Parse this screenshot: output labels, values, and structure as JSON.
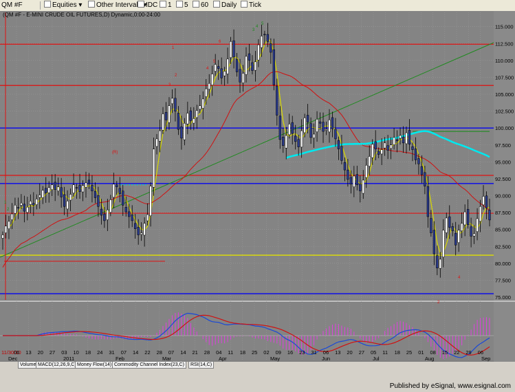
{
  "toolbar": {
    "symbol": "QM #F",
    "category": "Equities",
    "intervals_label": "Other Intervals",
    "items": [
      "IDC",
      "1",
      "5",
      "60",
      "Daily",
      "Tick"
    ]
  },
  "footer": {
    "published": "Published by eSignal, www.esignal.com"
  },
  "tabs": [
    "Volume",
    "MACD(12,26,9,C)",
    "Money Flow(14)",
    "Commodity Channel Index(23,C)",
    "RSI(14,C)"
  ],
  "colors": {
    "background": "#808080",
    "up_bar": "#ffffff",
    "down_bar": "#2a3b8f",
    "short_ma": "#d8d800",
    "long_ma": "#d01010",
    "cyan_ma": "#00e8ee",
    "trend": "#1e8a1e",
    "level_red": "#e01010",
    "level_blue": "#1818e0",
    "level_yellow": "#e0e000",
    "macd": "#1848d8",
    "signal": "#d01010",
    "histogram": "#e040e0"
  },
  "chart_data": {
    "type": "candlestick",
    "title": "(QM #F - E-MINI CRUDE OIL FUTURES,D) Dynamic,0:00-24:00",
    "ylim": [
      75,
      117
    ],
    "y_ticks": [
      "115.000",
      "112.500",
      "110.000",
      "107.500",
      "105.000",
      "102.500",
      "100.000",
      "97.500",
      "95.000",
      "92.500",
      "90.000",
      "87.500",
      "85.000",
      "82.500",
      "80.000",
      "77.500",
      "75.000"
    ],
    "x_day_labels": [
      "06",
      "13",
      "20",
      "27",
      "03",
      "10",
      "18",
      "24",
      "31",
      "07",
      "14",
      "22",
      "28",
      "07",
      "14",
      "21",
      "28",
      "04",
      "11",
      "18",
      "25",
      "02",
      "09",
      "16",
      "23",
      "31",
      "06",
      "13",
      "20",
      "27",
      "05",
      "11",
      "18",
      "25",
      "01",
      "08",
      "15",
      "22",
      "29",
      "06"
    ],
    "x_first_label": "11/30/10",
    "x_month_labels": [
      "Dec",
      "2011",
      "Feb",
      "Mar",
      "Apr",
      "May",
      "Jun",
      "Jul",
      "Aug",
      "Sep"
    ],
    "closes": [
      84.2,
      85.5,
      86.2,
      87.3,
      88.6,
      88.2,
      88.9,
      87.7,
      88.3,
      89.2,
      88.6,
      89.5,
      90.1,
      90.8,
      90.4,
      91.2,
      91.6,
      90.9,
      91.3,
      89.8,
      88.4,
      89.2,
      90.2,
      91.6,
      91.2,
      90.6,
      91.5,
      91.9,
      91.8,
      90.7,
      89.7,
      88.4,
      87.1,
      86.3,
      87.9,
      89.4,
      91.7,
      91.3,
      90.3,
      88.6,
      87.6,
      86.9,
      86.3,
      85.1,
      84.2,
      84.5,
      85.9,
      87.2,
      91.4,
      96.9,
      98.4,
      99.6,
      102.1,
      101.2,
      103.3,
      104.4,
      102.5,
      99.8,
      98.5,
      100.7,
      102.2,
      101.1,
      101.4,
      102.6,
      103.3,
      104.3,
      105.8,
      106.6,
      108.0,
      109.4,
      108.8,
      107.4,
      108.4,
      110.2,
      112.8,
      110.5,
      108.3,
      106.8,
      108.1,
      110.6,
      110.0,
      108.5,
      109.8,
      112.3,
      113.6,
      113.8,
      112.8,
      111.2,
      106.4,
      101.9,
      98.3,
      97.4,
      98.9,
      100.6,
      99.2,
      98.0,
      97.2,
      99.6,
      101.5,
      100.9,
      98.6,
      99.1,
      101.3,
      100.7,
      99.5,
      99.8,
      101.2,
      99.9,
      98.4,
      96.9,
      95.2,
      93.8,
      92.4,
      91.7,
      92.9,
      91.6,
      90.7,
      92.3,
      94.5,
      95.8,
      97.6,
      96.9,
      96.1,
      96.8,
      97.8,
      96.7,
      97.5,
      98.6,
      98.1,
      98.9,
      97.8,
      99.3,
      97.6,
      96.8,
      95.3,
      94.7,
      93.1,
      91.4,
      86.9,
      84.5,
      81.4,
      79.3,
      80.6,
      84.9,
      86.7,
      85.3,
      84.8,
      82.7,
      84.9,
      85.9,
      87.6,
      85.7,
      84.0,
      84.4,
      86.6,
      88.4,
      89.9,
      88.2,
      86.4
    ]
  }
}
